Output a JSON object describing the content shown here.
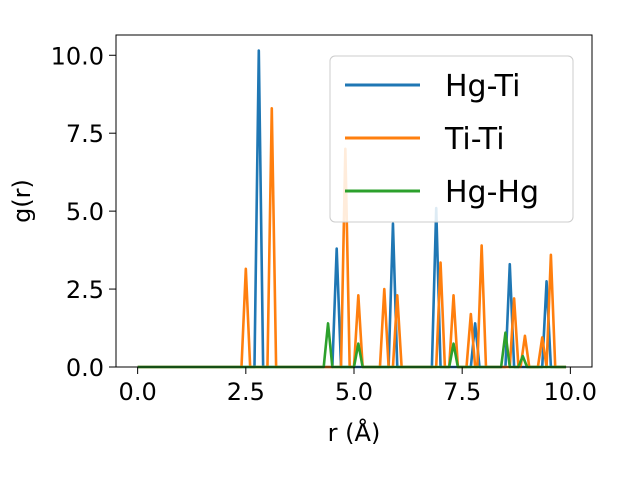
{
  "chart_data": {
    "type": "line",
    "xlabel": "r (Å)",
    "ylabel": "g(r)",
    "xlim": [
      -0.5,
      10.5
    ],
    "ylim": [
      0,
      10.65
    ],
    "xticks": [
      0.0,
      2.5,
      5.0,
      7.5,
      10.0
    ],
    "xtick_labels": [
      "0.0",
      "2.5",
      "5.0",
      "7.5",
      "10.0"
    ],
    "yticks": [
      0.0,
      2.5,
      5.0,
      7.5,
      10.0
    ],
    "ytick_labels": [
      "0.0",
      "2.5",
      "5.0",
      "7.5",
      "10.0"
    ],
    "grid": false,
    "legend_position": "upper-right",
    "series": [
      {
        "name": "Hg-Ti",
        "color": "#1f77b4",
        "points": [
          [
            0,
            0
          ],
          [
            2.7,
            0
          ],
          [
            2.8,
            10.15
          ],
          [
            2.9,
            0
          ],
          [
            4.5,
            0
          ],
          [
            4.6,
            3.8
          ],
          [
            4.7,
            0
          ],
          [
            5.8,
            0
          ],
          [
            5.9,
            4.6
          ],
          [
            6.0,
            0
          ],
          [
            6.8,
            0
          ],
          [
            6.9,
            5.1
          ],
          [
            7.0,
            0
          ],
          [
            7.7,
            0
          ],
          [
            7.8,
            1.4
          ],
          [
            7.9,
            0
          ],
          [
            8.5,
            0
          ],
          [
            8.6,
            3.3
          ],
          [
            8.7,
            0
          ],
          [
            9.35,
            0
          ],
          [
            9.45,
            2.75
          ],
          [
            9.55,
            0
          ],
          [
            9.9,
            0
          ]
        ]
      },
      {
        "name": "Ti-Ti",
        "color": "#ff7f0e",
        "points": [
          [
            0,
            0
          ],
          [
            2.4,
            0
          ],
          [
            2.5,
            3.15
          ],
          [
            2.6,
            0
          ],
          [
            3.0,
            0
          ],
          [
            3.1,
            8.3
          ],
          [
            3.2,
            0
          ],
          [
            4.7,
            0
          ],
          [
            4.8,
            7.0
          ],
          [
            4.9,
            0
          ],
          [
            5.0,
            0
          ],
          [
            5.1,
            2.3
          ],
          [
            5.2,
            0
          ],
          [
            5.6,
            0
          ],
          [
            5.7,
            2.5
          ],
          [
            5.8,
            0
          ],
          [
            5.9,
            0
          ],
          [
            6.0,
            2.3
          ],
          [
            6.1,
            0
          ],
          [
            6.9,
            0
          ],
          [
            7.0,
            3.35
          ],
          [
            7.1,
            0
          ],
          [
            7.2,
            0
          ],
          [
            7.3,
            2.3
          ],
          [
            7.4,
            0
          ],
          [
            7.6,
            0
          ],
          [
            7.7,
            1.7
          ],
          [
            7.8,
            0
          ],
          [
            7.85,
            0
          ],
          [
            7.95,
            3.9
          ],
          [
            8.05,
            0
          ],
          [
            8.6,
            0
          ],
          [
            8.7,
            2.2
          ],
          [
            8.8,
            0
          ],
          [
            8.85,
            0
          ],
          [
            8.95,
            1.0
          ],
          [
            9.05,
            0
          ],
          [
            9.25,
            0
          ],
          [
            9.35,
            0.95
          ],
          [
            9.45,
            0
          ],
          [
            9.45,
            0
          ],
          [
            9.55,
            3.6
          ],
          [
            9.65,
            0
          ],
          [
            9.9,
            0
          ]
        ]
      },
      {
        "name": "Hg-Hg",
        "color": "#2ca02c",
        "points": [
          [
            0,
            0
          ],
          [
            4.3,
            0
          ],
          [
            4.4,
            1.4
          ],
          [
            4.5,
            0
          ],
          [
            5.0,
            0
          ],
          [
            5.1,
            0.75
          ],
          [
            5.2,
            0
          ],
          [
            7.2,
            0
          ],
          [
            7.3,
            0.75
          ],
          [
            7.4,
            0
          ],
          [
            8.4,
            0
          ],
          [
            8.5,
            1.1
          ],
          [
            8.6,
            0
          ],
          [
            8.8,
            0
          ],
          [
            8.9,
            0.35
          ],
          [
            9.0,
            0
          ],
          [
            9.9,
            0
          ]
        ]
      }
    ]
  }
}
